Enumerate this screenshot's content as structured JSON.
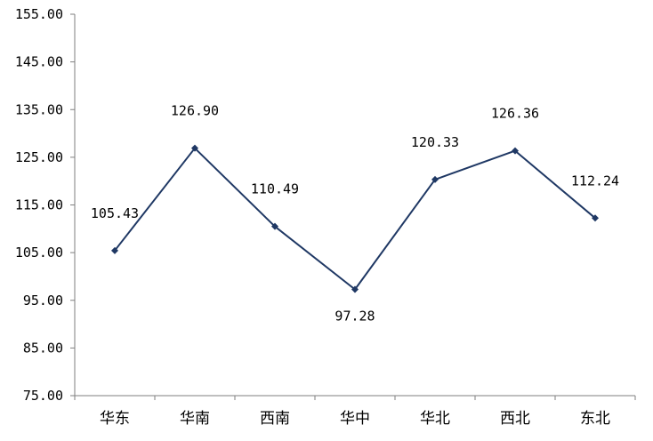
{
  "chart_data": {
    "type": "line",
    "title": "",
    "xlabel": "",
    "ylabel": "",
    "categories": [
      "华东",
      "华南",
      "西南",
      "华中",
      "华北",
      "西北",
      "东北"
    ],
    "series": [
      {
        "values": [
          105.43,
          126.9,
          110.49,
          97.28,
          120.33,
          126.36,
          112.24
        ],
        "data_labels": [
          "105.43",
          "126.90",
          "110.49",
          "97.28",
          "120.33",
          "126.36",
          "112.24"
        ],
        "color": "#1f3864",
        "marker": "diamond"
      }
    ],
    "ylim": [
      75.0,
      155.0
    ],
    "yticks": [
      75.0,
      85.0,
      95.0,
      105.0,
      115.0,
      125.0,
      135.0,
      145.0,
      155.0
    ],
    "ytick_labels": [
      "75.00",
      "85.00",
      "95.00",
      "105.00",
      "115.00",
      "125.00",
      "135.00",
      "145.00",
      "155.00"
    ],
    "grid": false,
    "legend": "none",
    "axis_color": "#7f7f7f",
    "label_placement": [
      "above",
      "above",
      "above",
      "below",
      "above",
      "above",
      "above"
    ]
  }
}
